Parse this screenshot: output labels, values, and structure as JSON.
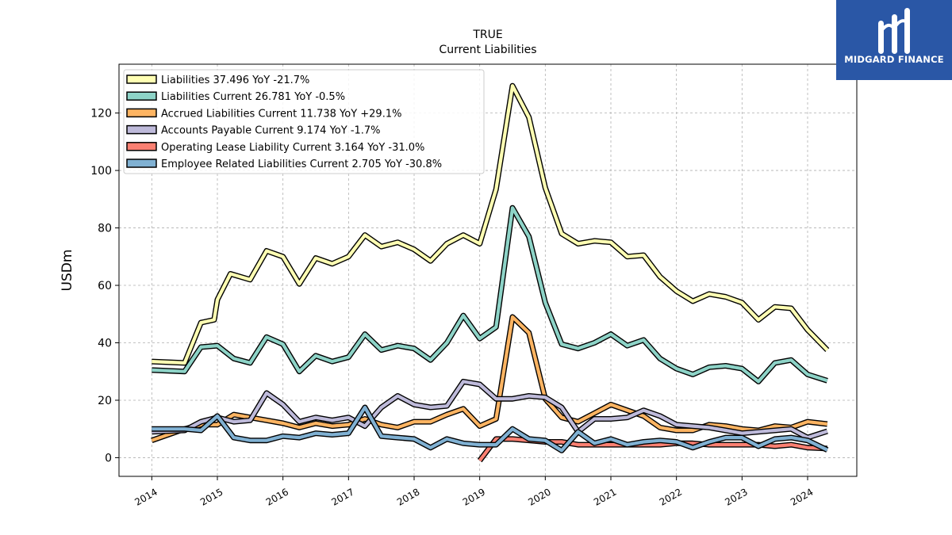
{
  "brand": {
    "name": "MIDGARD FINANCE",
    "logo_icon": "midgard-m-logo-icon",
    "bg_color": "#2a57a6"
  },
  "chart_data": {
    "type": "line",
    "title": "TRUE",
    "subtitle": "Current  Liabilities",
    "ylabel": "USDm",
    "xlabel": "",
    "xlim": [
      2013.5,
      2024.75
    ],
    "ylim": [
      -6.5,
      137
    ],
    "yticks": [
      0,
      20,
      40,
      60,
      80,
      100,
      120
    ],
    "xticks": [
      2014,
      2015,
      2016,
      2017,
      2018,
      2019,
      2020,
      2021,
      2022,
      2023,
      2024
    ],
    "grid": true,
    "legend_position": "top-left",
    "series": [
      {
        "name": "Liabilities",
        "legend": "Liabilities  37.496 YoY -21.7%",
        "color": "#ffffb3",
        "points": [
          [
            2014.0,
            33.5
          ],
          [
            2014.5,
            33.0
          ],
          [
            2014.75,
            47.0
          ],
          [
            2014.95,
            48.0
          ],
          [
            2015.0,
            55.0
          ],
          [
            2015.2,
            64.0
          ],
          [
            2015.5,
            62.0
          ],
          [
            2015.75,
            72.0
          ],
          [
            2016.0,
            70.0
          ],
          [
            2016.25,
            60.5
          ],
          [
            2016.5,
            69.5
          ],
          [
            2016.75,
            67.5
          ],
          [
            2017.0,
            70.0
          ],
          [
            2017.25,
            77.5
          ],
          [
            2017.5,
            73.5
          ],
          [
            2017.75,
            75.0
          ],
          [
            2018.0,
            72.5
          ],
          [
            2018.25,
            68.5
          ],
          [
            2018.5,
            74.5
          ],
          [
            2018.75,
            77.5
          ],
          [
            2019.0,
            74.5
          ],
          [
            2019.25,
            93.5
          ],
          [
            2019.5,
            129.5
          ],
          [
            2019.75,
            118.5
          ],
          [
            2020.0,
            94.0
          ],
          [
            2020.25,
            78.0
          ],
          [
            2020.5,
            74.5
          ],
          [
            2020.75,
            75.5
          ],
          [
            2021.0,
            75.0
          ],
          [
            2021.25,
            70.0
          ],
          [
            2021.5,
            70.5
          ],
          [
            2021.75,
            63.0
          ],
          [
            2022.0,
            58.0
          ],
          [
            2022.25,
            54.5
          ],
          [
            2022.5,
            57.0
          ],
          [
            2022.75,
            56.0
          ],
          [
            2023.0,
            54.0
          ],
          [
            2023.25,
            48.0
          ],
          [
            2023.5,
            52.5
          ],
          [
            2023.75,
            52.0
          ],
          [
            2024.0,
            44.5
          ],
          [
            2024.3,
            37.5
          ]
        ]
      },
      {
        "name": "Liabilities Current",
        "legend": "Liabilities Current  26.781 YoY -0.5%",
        "color": "#8dd3c7",
        "points": [
          [
            2014.0,
            30.5
          ],
          [
            2014.5,
            30.0
          ],
          [
            2014.75,
            38.5
          ],
          [
            2015.0,
            39.0
          ],
          [
            2015.25,
            34.5
          ],
          [
            2015.5,
            33.0
          ],
          [
            2015.75,
            42.0
          ],
          [
            2016.0,
            39.5
          ],
          [
            2016.25,
            30.0
          ],
          [
            2016.5,
            35.5
          ],
          [
            2016.75,
            33.5
          ],
          [
            2017.0,
            35.0
          ],
          [
            2017.25,
            43.0
          ],
          [
            2017.5,
            37.5
          ],
          [
            2017.75,
            39.0
          ],
          [
            2018.0,
            38.0
          ],
          [
            2018.25,
            34.0
          ],
          [
            2018.5,
            40.0
          ],
          [
            2018.75,
            49.5
          ],
          [
            2019.0,
            41.5
          ],
          [
            2019.25,
            45.5
          ],
          [
            2019.5,
            87.0
          ],
          [
            2019.75,
            77.0
          ],
          [
            2020.0,
            54.0
          ],
          [
            2020.25,
            39.5
          ],
          [
            2020.5,
            38.0
          ],
          [
            2020.75,
            40.0
          ],
          [
            2021.0,
            43.0
          ],
          [
            2021.25,
            39.0
          ],
          [
            2021.5,
            41.0
          ],
          [
            2021.75,
            34.5
          ],
          [
            2022.0,
            31.0
          ],
          [
            2022.25,
            29.0
          ],
          [
            2022.5,
            31.5
          ],
          [
            2022.75,
            32.0
          ],
          [
            2023.0,
            31.0
          ],
          [
            2023.25,
            26.5
          ],
          [
            2023.5,
            33.0
          ],
          [
            2023.75,
            34.0
          ],
          [
            2024.0,
            29.0
          ],
          [
            2024.3,
            26.8
          ]
        ]
      },
      {
        "name": "Accrued Liabilities Current",
        "legend": "Accrued Liabilities Current  11.738 YoY +29.1%",
        "color": "#fdb462",
        "points": [
          [
            2014.0,
            6.0
          ],
          [
            2014.5,
            10.0
          ],
          [
            2014.75,
            11.5
          ],
          [
            2015.0,
            11.5
          ],
          [
            2015.25,
            15.0
          ],
          [
            2015.5,
            14.0
          ],
          [
            2015.75,
            13.0
          ],
          [
            2016.0,
            12.0
          ],
          [
            2016.25,
            10.5
          ],
          [
            2016.5,
            12.0
          ],
          [
            2016.75,
            11.0
          ],
          [
            2017.0,
            11.5
          ],
          [
            2017.25,
            13.5
          ],
          [
            2017.5,
            11.5
          ],
          [
            2017.75,
            10.5
          ],
          [
            2018.0,
            12.5
          ],
          [
            2018.25,
            12.5
          ],
          [
            2018.5,
            15.0
          ],
          [
            2018.75,
            17.0
          ],
          [
            2019.0,
            11.0
          ],
          [
            2019.25,
            13.5
          ],
          [
            2019.5,
            49.0
          ],
          [
            2019.75,
            43.5
          ],
          [
            2020.0,
            20.5
          ],
          [
            2020.25,
            14.0
          ],
          [
            2020.5,
            12.5
          ],
          [
            2020.75,
            15.5
          ],
          [
            2021.0,
            18.5
          ],
          [
            2021.25,
            16.5
          ],
          [
            2021.5,
            14.5
          ],
          [
            2021.75,
            10.5
          ],
          [
            2022.0,
            9.5
          ],
          [
            2022.25,
            9.5
          ],
          [
            2022.5,
            11.5
          ],
          [
            2022.75,
            11.0
          ],
          [
            2023.0,
            10.0
          ],
          [
            2023.25,
            9.5
          ],
          [
            2023.5,
            11.0
          ],
          [
            2023.75,
            10.5
          ],
          [
            2024.0,
            12.5
          ],
          [
            2024.3,
            11.7
          ]
        ]
      },
      {
        "name": "Accounts Payable Current",
        "legend": "Accounts Payable Current  9.174 YoY -1.7%",
        "color": "#bebada",
        "points": [
          [
            2014.0,
            9.0
          ],
          [
            2014.5,
            9.5
          ],
          [
            2014.75,
            12.5
          ],
          [
            2015.0,
            14.0
          ],
          [
            2015.25,
            12.5
          ],
          [
            2015.5,
            13.0
          ],
          [
            2015.75,
            22.5
          ],
          [
            2016.0,
            18.5
          ],
          [
            2016.25,
            12.5
          ],
          [
            2016.5,
            14.0
          ],
          [
            2016.75,
            13.0
          ],
          [
            2017.0,
            14.0
          ],
          [
            2017.25,
            11.0
          ],
          [
            2017.5,
            17.5
          ],
          [
            2017.75,
            21.5
          ],
          [
            2018.0,
            18.5
          ],
          [
            2018.25,
            17.5
          ],
          [
            2018.5,
            18.0
          ],
          [
            2018.75,
            26.5
          ],
          [
            2019.0,
            25.5
          ],
          [
            2019.25,
            20.5
          ],
          [
            2019.5,
            20.5
          ],
          [
            2019.75,
            21.5
          ],
          [
            2020.0,
            21.0
          ],
          [
            2020.25,
            17.5
          ],
          [
            2020.5,
            9.0
          ],
          [
            2020.75,
            13.5
          ],
          [
            2021.0,
            13.5
          ],
          [
            2021.25,
            14.0
          ],
          [
            2021.5,
            16.5
          ],
          [
            2021.75,
            14.5
          ],
          [
            2022.0,
            11.5
          ],
          [
            2022.25,
            11.0
          ],
          [
            2022.5,
            10.5
          ],
          [
            2022.75,
            9.5
          ],
          [
            2023.0,
            8.5
          ],
          [
            2023.25,
            9.0
          ],
          [
            2023.5,
            9.5
          ],
          [
            2023.75,
            10.0
          ],
          [
            2024.0,
            7.0
          ],
          [
            2024.3,
            9.2
          ]
        ]
      },
      {
        "name": "Operating Lease Liability Current",
        "legend": "Operating Lease Liability Current  3.164 YoY -31.0%",
        "color": "#fb8072",
        "points": [
          [
            2019.0,
            -1.0
          ],
          [
            2019.25,
            6.5
          ],
          [
            2019.5,
            6.5
          ],
          [
            2019.75,
            6.0
          ],
          [
            2020.0,
            5.5
          ],
          [
            2020.25,
            5.5
          ],
          [
            2020.5,
            4.5
          ],
          [
            2020.75,
            4.5
          ],
          [
            2021.0,
            4.5
          ],
          [
            2021.25,
            4.5
          ],
          [
            2021.5,
            4.5
          ],
          [
            2021.75,
            4.5
          ],
          [
            2022.0,
            5.0
          ],
          [
            2022.25,
            5.0
          ],
          [
            2022.5,
            4.5
          ],
          [
            2022.75,
            4.5
          ],
          [
            2023.0,
            4.5
          ],
          [
            2023.25,
            4.5
          ],
          [
            2023.5,
            4.0
          ],
          [
            2023.75,
            4.5
          ],
          [
            2024.0,
            3.5
          ],
          [
            2024.3,
            3.2
          ]
        ]
      },
      {
        "name": "Employee Related Liabilities Current",
        "legend": "Employee Related Liabilities Current  2.705 YoY -30.8%",
        "color": "#80b1d3",
        "points": [
          [
            2014.0,
            10.0
          ],
          [
            2014.5,
            10.0
          ],
          [
            2014.75,
            9.5
          ],
          [
            2015.0,
            14.5
          ],
          [
            2015.25,
            7.0
          ],
          [
            2015.5,
            6.0
          ],
          [
            2015.75,
            6.0
          ],
          [
            2016.0,
            7.5
          ],
          [
            2016.25,
            7.0
          ],
          [
            2016.5,
            8.5
          ],
          [
            2016.75,
            8.0
          ],
          [
            2017.0,
            8.5
          ],
          [
            2017.25,
            17.5
          ],
          [
            2017.5,
            7.5
          ],
          [
            2017.75,
            7.0
          ],
          [
            2018.0,
            6.5
          ],
          [
            2018.25,
            3.5
          ],
          [
            2018.5,
            6.5
          ],
          [
            2018.75,
            5.0
          ],
          [
            2019.0,
            4.5
          ],
          [
            2019.25,
            4.5
          ],
          [
            2019.5,
            10.0
          ],
          [
            2019.75,
            6.5
          ],
          [
            2020.0,
            6.0
          ],
          [
            2020.25,
            2.5
          ],
          [
            2020.5,
            9.0
          ],
          [
            2020.75,
            5.0
          ],
          [
            2021.0,
            6.5
          ],
          [
            2021.25,
            4.5
          ],
          [
            2021.5,
            5.5
          ],
          [
            2021.75,
            6.0
          ],
          [
            2022.0,
            5.5
          ],
          [
            2022.25,
            3.5
          ],
          [
            2022.5,
            5.5
          ],
          [
            2022.75,
            7.0
          ],
          [
            2023.0,
            7.0
          ],
          [
            2023.25,
            4.0
          ],
          [
            2023.5,
            6.5
          ],
          [
            2023.75,
            7.0
          ],
          [
            2024.0,
            6.0
          ],
          [
            2024.3,
            2.7
          ]
        ]
      }
    ]
  }
}
